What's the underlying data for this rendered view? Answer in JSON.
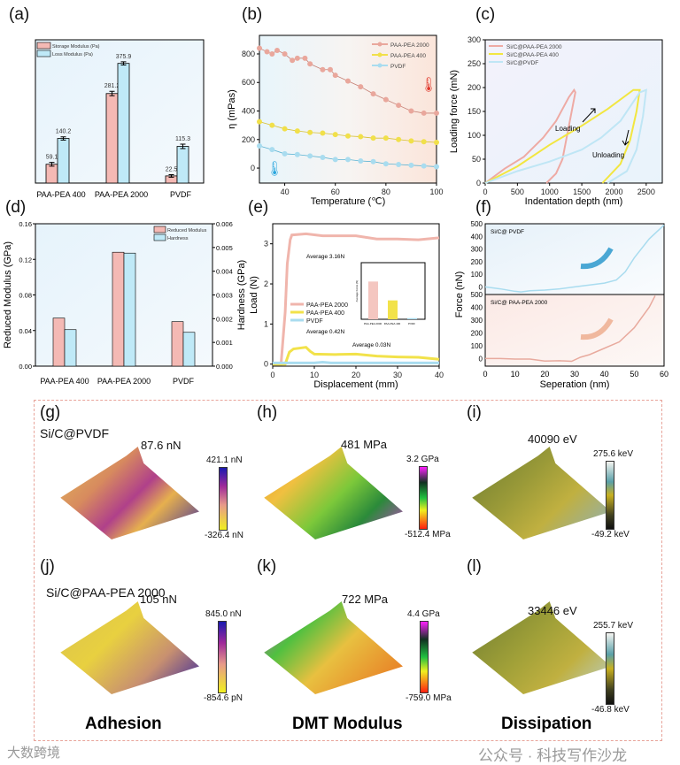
{
  "panel_labels": [
    "(a)",
    "(b)",
    "(c)",
    "(d)",
    "(e)",
    "(f)",
    "(g)",
    "(h)",
    "(i)",
    "(j)",
    "(k)",
    "(l)"
  ],
  "chart_data": [
    {
      "id": "a",
      "type": "bar",
      "categories": [
        "PAA-PEA 400",
        "PAA-PEA 2000",
        "PVDF"
      ],
      "series": [
        {
          "name": "Storage Modulus (Pa)",
          "color": "#f4b9b4",
          "values": [
            59.1,
            281.2,
            22.5
          ],
          "errors": [
            12,
            14,
            8
          ],
          "labels": [
            "59.1",
            "281.2",
            "22.5"
          ]
        },
        {
          "name": "Loss Modulus (Pa)",
          "color": "#bfe9f7",
          "values": [
            140.2,
            375.9,
            115.3
          ],
          "errors": [
            10,
            10,
            14
          ],
          "labels": [
            "140.2",
            "375.9",
            "115.3"
          ]
        }
      ],
      "ylim": [
        0,
        450
      ],
      "legend": "top-left"
    },
    {
      "id": "b",
      "type": "line",
      "xlabel": "Temperature (℃)",
      "ylabel": "η (mPas)",
      "xlim": [
        30,
        100
      ],
      "ylim": [
        -105,
        930
      ],
      "xticks": [
        40,
        60,
        80,
        100
      ],
      "yticks": [
        0,
        200,
        400,
        600,
        800
      ],
      "series": [
        {
          "name": "PAA-PEA 2000",
          "color": "#e9a79c",
          "x": [
            30,
            33,
            35,
            37,
            40,
            43,
            45,
            48,
            50,
            55,
            58,
            60,
            65,
            70,
            75,
            80,
            85,
            90,
            95,
            100
          ],
          "y": [
            840,
            815,
            800,
            825,
            800,
            755,
            770,
            770,
            730,
            690,
            690,
            650,
            610,
            570,
            520,
            480,
            440,
            400,
            385,
            385
          ]
        },
        {
          "name": "PAA-PEA 400",
          "color": "#f1e04a",
          "x": [
            30,
            35,
            40,
            45,
            50,
            55,
            60,
            65,
            70,
            75,
            80,
            85,
            90,
            95,
            100
          ],
          "y": [
            325,
            300,
            275,
            260,
            250,
            245,
            235,
            225,
            220,
            210,
            210,
            200,
            190,
            185,
            180
          ]
        },
        {
          "name": "PVDF",
          "color": "#a9dcef",
          "x": [
            30,
            35,
            40,
            45,
            50,
            55,
            60,
            65,
            70,
            75,
            80,
            85,
            90,
            95,
            100
          ],
          "y": [
            155,
            130,
            100,
            95,
            85,
            75,
            60,
            60,
            50,
            45,
            30,
            25,
            20,
            15,
            10
          ]
        }
      ],
      "legend": "top-right"
    },
    {
      "id": "c",
      "type": "line",
      "xlabel": "Indentation depth (nm)",
      "ylabel": "Loading force (mN)",
      "xlim": [
        0,
        2750
      ],
      "ylim": [
        0,
        300
      ],
      "xticks": [
        0,
        500,
        1000,
        1500,
        2000,
        2500
      ],
      "yticks": [
        0,
        50,
        100,
        150,
        200,
        250,
        300
      ],
      "series": [
        {
          "name": "Si/C@PAA-PEA 2000",
          "color": "#eeaaa4",
          "x": [
            0,
            300,
            600,
            900,
            1100,
            1300,
            1380,
            1400,
            1300,
            1200,
            1100,
            950
          ],
          "y": [
            0,
            30,
            55,
            95,
            130,
            180,
            195,
            190,
            120,
            50,
            20,
            0
          ]
        },
        {
          "name": "Si/C@PAA-PEA 400",
          "color": "#f2e640",
          "x": [
            0,
            500,
            1000,
            1500,
            1900,
            2300,
            2400,
            2350,
            2250,
            2100,
            1820
          ],
          "y": [
            0,
            35,
            80,
            120,
            155,
            195,
            195,
            150,
            90,
            40,
            0
          ]
        },
        {
          "name": "Si/C@PVDF",
          "color": "#bfe6f5",
          "x": [
            0,
            500,
            1000,
            1500,
            1800,
            2100,
            2400,
            2500,
            2450,
            2350,
            2200,
            1900
          ],
          "y": [
            0,
            25,
            45,
            70,
            95,
            130,
            190,
            195,
            140,
            70,
            25,
            0
          ]
        }
      ],
      "annotations": [
        "Loading",
        "Unloading"
      ],
      "legend": "top-left"
    },
    {
      "id": "d",
      "type": "bar",
      "categories": [
        "PAA-PEA 400",
        "PAA-PEA 2000",
        "PVDF"
      ],
      "ylabel": "Reduced Modulus (GPa)",
      "y2label": "Hardness (GPa)",
      "ylim": [
        0,
        0.16
      ],
      "y2lim": [
        0,
        0.006
      ],
      "yticks": [
        "0.00",
        "0.04",
        "0.08",
        "0.12",
        "0.16"
      ],
      "y2ticks": [
        "0.000",
        "0.001",
        "0.002",
        "0.003",
        "0.004",
        "0.005",
        "0.006"
      ],
      "series": [
        {
          "name": "Reduced Modulus",
          "color": "#f4b9b4",
          "values": [
            0.054,
            0.128,
            0.05
          ]
        },
        {
          "name": "Hardness",
          "color": "#bfe9f7",
          "values": [
            0.041,
            0.127,
            0.038
          ]
        }
      ],
      "legend": "top-right"
    },
    {
      "id": "e",
      "type": "line",
      "xlabel": "Displacement (mm)",
      "ylabel": "Load (N)",
      "xlim": [
        0,
        40
      ],
      "ylim": [
        -0.05,
        3.5
      ],
      "xticks": [
        0,
        10,
        20,
        30,
        40
      ],
      "yticks": [
        0,
        1,
        2,
        3
      ],
      "series": [
        {
          "name": "PAA-PEA 2000",
          "color": "#f0b5ac",
          "x": [
            0,
            2,
            3,
            3.5,
            4.2,
            4.6,
            8,
            12,
            20,
            25,
            30,
            35,
            40
          ],
          "y": [
            0,
            0,
            1.3,
            2.5,
            3.1,
            3.22,
            3.25,
            3.2,
            3.2,
            3.12,
            3.12,
            3.1,
            3.15
          ]
        },
        {
          "name": "PAA-PEA 400",
          "color": "#f2e24a",
          "x": [
            0,
            3,
            4,
            5,
            8,
            9,
            10,
            15,
            20,
            25,
            30,
            35,
            40
          ],
          "y": [
            0,
            0,
            0.3,
            0.38,
            0.42,
            0.32,
            0.25,
            0.24,
            0.25,
            0.2,
            0.18,
            0.17,
            0.12
          ]
        },
        {
          "name": "PVDF",
          "color": "#a9dcef",
          "x": [
            0,
            10,
            12,
            14,
            20,
            30,
            40
          ],
          "y": [
            0.03,
            0.03,
            0.05,
            0.03,
            0.03,
            0.03,
            0.03
          ]
        }
      ],
      "annotations": [
        "Average  3.16N",
        "Average  0.42N",
        "Average  0.03N"
      ],
      "inset": {
        "type": "bar",
        "ylabel": "Average Force (N)",
        "categories": [
          "PAA-PEA 2000",
          "PAA-PEA 400",
          "PVDF"
        ],
        "values": [
          3.16,
          0.42,
          0.03
        ],
        "colors": [
          "#f4c6c0",
          "#f2e24a",
          "#a9dcef"
        ]
      },
      "legend": "center-left"
    },
    {
      "id": "f",
      "type": "line",
      "xlabel": "Seperation (nm)",
      "ylabel": "Force (nN)",
      "xlim": [
        0,
        60
      ],
      "ylim": [
        -60,
        500
      ],
      "xticks": [
        0,
        10,
        20,
        30,
        40,
        50,
        60
      ],
      "yticks": [
        0,
        100,
        200,
        300,
        400,
        500
      ],
      "series": [
        {
          "name": "Si/C@ PVDF",
          "color": "#a9dcef",
          "x": [
            0,
            5,
            10,
            12,
            15,
            20,
            25,
            30,
            35,
            40,
            44,
            47,
            50,
            55,
            60
          ],
          "y": [
            0,
            -15,
            -35,
            -40,
            -30,
            -25,
            -15,
            0,
            15,
            30,
            55,
            120,
            230,
            380,
            490
          ]
        },
        {
          "name": "Si/C@ PAA-PEA 2000",
          "color": "#e8aa9e",
          "x": [
            0,
            5,
            10,
            15,
            20,
            25,
            29,
            32,
            35,
            40,
            45,
            50,
            55,
            57
          ],
          "y": [
            0,
            0,
            -5,
            -5,
            -20,
            -18,
            -22,
            10,
            30,
            80,
            130,
            240,
            400,
            490
          ]
        }
      ]
    }
  ],
  "afm": {
    "row1_sample": "Si/C@PVDF",
    "row2_sample": "Si/C@PAA-PEA 2000",
    "maps": [
      {
        "id": "g",
        "value": "87.6 nN",
        "max": "421.1 nN",
        "min": "-326.4 nN"
      },
      {
        "id": "h",
        "value": "481 MPa",
        "max": "3.2 GPa",
        "min": "-512.4 MPa"
      },
      {
        "id": "i",
        "value": "40090 eV",
        "max": "275.6 keV",
        "min": "-49.2 keV"
      },
      {
        "id": "j",
        "value": "105 nN",
        "max": "845.0 nN",
        "min": "-854.6 pN"
      },
      {
        "id": "k",
        "value": "722 MPa",
        "max": "4.4 GPa",
        "min": "-759.0 MPa"
      },
      {
        "id": "l",
        "value": "33446 eV",
        "max": "255.7 keV",
        "min": "-46.8 keV"
      }
    ],
    "column_titles": [
      "Adhesion",
      "DMT Modulus",
      "Dissipation"
    ]
  },
  "watermarks": [
    "公众号 · 科技写作沙龙",
    "大数跨境"
  ]
}
